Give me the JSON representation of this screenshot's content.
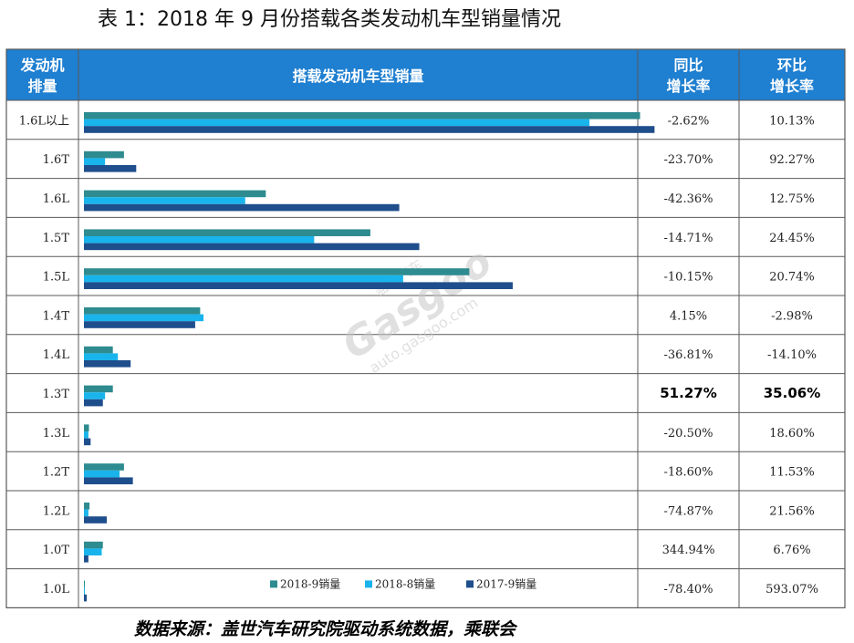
{
  "title": "表 1：2018 年 9 月份搭载各类发动机车型销量情况",
  "source": "数据来源：盖世汽车研究院驱动系统数据，乘联会",
  "header": {
    "col1": [
      "发动机",
      "排量"
    ],
    "col2": "搭载发动机车型销量",
    "col3": [
      "同比",
      "增长率"
    ],
    "col4": [
      "环比",
      "增长率"
    ]
  },
  "watermark": {
    "brand": "Gasgoo",
    "cn": "盖世汽车",
    "url": "auto.gasgoo.com"
  },
  "colors": {
    "header_bg": "#1f7fd0",
    "s1": "#2e8b8f",
    "s2": "#19b4ec",
    "s3": "#1f4e8c",
    "grid": "#5a5a5a"
  },
  "chart_data": {
    "type": "bar",
    "orientation": "horizontal",
    "categories": [
      "1.6L以上",
      "1.6T",
      "1.6L",
      "1.5T",
      "1.5L",
      "1.4T",
      "1.4L",
      "1.3T",
      "1.3L",
      "1.2T",
      "1.2L",
      "1.0T",
      "1.0L"
    ],
    "series": [
      {
        "name": "2018-9销量",
        "values": [
          100,
          7.2,
          32.7,
          51.5,
          69.3,
          20.9,
          5.2,
          5.2,
          0.9,
          7.2,
          1.0,
          3.4,
          0.1
        ]
      },
      {
        "name": "2018-8销量",
        "values": [
          90.9,
          3.8,
          29.0,
          41.4,
          57.4,
          21.5,
          6.1,
          3.8,
          0.8,
          6.4,
          0.8,
          3.2,
          0.1
        ]
      },
      {
        "name": "2017-9销量",
        "values": [
          102.6,
          9.4,
          56.7,
          60.3,
          77.1,
          20.0,
          8.4,
          3.4,
          1.2,
          8.8,
          4.1,
          0.8,
          0.5
        ]
      }
    ],
    "yoy": [
      "-2.62%",
      "-23.70%",
      "-42.36%",
      "-14.71%",
      "-10.15%",
      "4.15%",
      "-36.81%",
      "51.27%",
      "-20.50%",
      "-18.60%",
      "-74.87%",
      "344.94%",
      "-78.40%"
    ],
    "mom": [
      "10.13%",
      "92.27%",
      "12.75%",
      "24.45%",
      "20.74%",
      "-2.98%",
      "-14.10%",
      "35.06%",
      "18.60%",
      "11.53%",
      "21.56%",
      "6.76%",
      "593.07%"
    ],
    "highlight_row": 7,
    "xlim": [
      0,
      105
    ],
    "legend": "bottom"
  }
}
